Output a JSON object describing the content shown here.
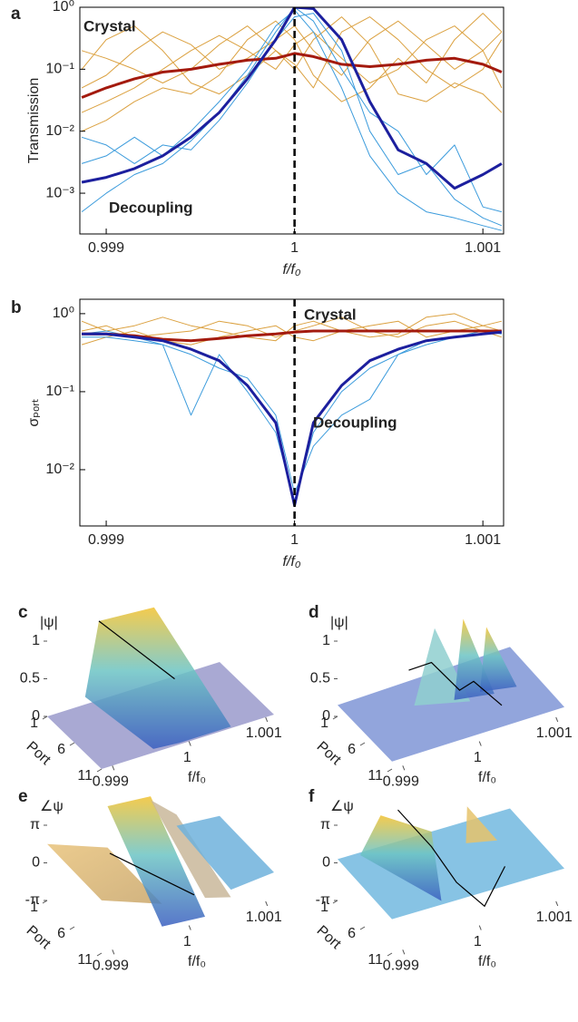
{
  "chart_data": [
    {
      "type": "line",
      "panel": "a",
      "ylabel": "Transmission",
      "xlabel": "f/f₀",
      "log_y": true,
      "xlim": [
        0.99886,
        1.00111
      ],
      "ylim": [
        0.00022,
        1
      ],
      "xticks": [
        0.999,
        1,
        1.001
      ],
      "yticks": [
        {
          "value": 1,
          "label": "10⁰"
        },
        {
          "value": 0.1,
          "label": "10⁻¹"
        },
        {
          "value": 0.01,
          "label": "10⁻²"
        },
        {
          "value": 0.001,
          "label": "10⁻³"
        }
      ],
      "vline": 1,
      "annotations": [
        {
          "text": "Crystal",
          "color": "#e07b1a"
        },
        {
          "text": "Decoupling",
          "color": "#1f80cc"
        }
      ],
      "x": [
        0.99887,
        0.999,
        0.99915,
        0.9993,
        0.99945,
        0.9996,
        0.99975,
        0.9999,
        1,
        1.0001,
        1.00025,
        1.0004,
        1.00055,
        1.0007,
        1.00085,
        1.001,
        1.0011
      ],
      "series": [
        {
          "color": "#dba140",
          "width": 1,
          "values": [
            0.05,
            0.08,
            0.2,
            0.4,
            0.25,
            0.1,
            0.15,
            0.3,
            0.5,
            0.2,
            0.08,
            0.3,
            0.6,
            0.25,
            0.1,
            0.2,
            0.4
          ]
        },
        {
          "color": "#dba140",
          "width": 1,
          "values": [
            0.02,
            0.03,
            0.05,
            0.1,
            0.2,
            0.35,
            0.2,
            0.1,
            0.25,
            0.4,
            0.15,
            0.06,
            0.1,
            0.3,
            0.5,
            0.2,
            0.05
          ]
        },
        {
          "color": "#dba140",
          "width": 1,
          "values": [
            0.1,
            0.3,
            0.5,
            0.2,
            0.06,
            0.04,
            0.08,
            0.2,
            0.12,
            0.05,
            0.4,
            0.7,
            0.3,
            0.1,
            0.05,
            0.1,
            0.3
          ]
        },
        {
          "color": "#dba140",
          "width": 1,
          "values": [
            0.01,
            0.015,
            0.03,
            0.05,
            0.04,
            0.08,
            0.3,
            0.6,
            0.3,
            0.08,
            0.03,
            0.05,
            0.15,
            0.06,
            0.3,
            0.8,
            0.4
          ]
        },
        {
          "color": "#dba140",
          "width": 1,
          "values": [
            0.2,
            0.15,
            0.1,
            0.06,
            0.1,
            0.25,
            0.5,
            0.2,
            0.1,
            0.3,
            0.7,
            0.25,
            0.04,
            0.03,
            0.06,
            0.04,
            0.02
          ]
        },
        {
          "color": "#3b9bdc",
          "width": 1,
          "values": [
            0.003,
            0.004,
            0.008,
            0.004,
            0.01,
            0.03,
            0.1,
            0.5,
            0.9,
            0.4,
            0.05,
            0.004,
            0.001,
            0.0005,
            0.0004,
            0.0003,
            0.00025
          ]
        },
        {
          "color": "#3b9bdc",
          "width": 1,
          "values": [
            0.008,
            0.006,
            0.003,
            0.006,
            0.005,
            0.015,
            0.06,
            0.3,
            0.7,
            0.8,
            0.2,
            0.01,
            0.002,
            0.003,
            0.0008,
            0.0004,
            0.0003
          ]
        },
        {
          "color": "#3b9bdc",
          "width": 1,
          "values": [
            0.0005,
            0.001,
            0.002,
            0.003,
            0.007,
            0.02,
            0.08,
            0.4,
            1.0,
            0.6,
            0.1,
            0.02,
            0.01,
            0.002,
            0.006,
            0.0006,
            0.0005
          ]
        },
        {
          "color": "#a31a0e",
          "width": 3,
          "values": [
            0.035,
            0.05,
            0.07,
            0.09,
            0.1,
            0.12,
            0.14,
            0.15,
            0.18,
            0.16,
            0.12,
            0.11,
            0.12,
            0.14,
            0.15,
            0.12,
            0.09
          ]
        },
        {
          "color": "#1c1f9e",
          "width": 3,
          "values": [
            0.0015,
            0.0018,
            0.0025,
            0.004,
            0.008,
            0.02,
            0.07,
            0.3,
            1.0,
            0.95,
            0.3,
            0.03,
            0.005,
            0.003,
            0.0012,
            0.002,
            0.003
          ]
        }
      ]
    },
    {
      "type": "line",
      "panel": "b",
      "ylabel": "σₚₒᵣₜ",
      "xlabel": "f/f₀",
      "log_y": true,
      "xlim": [
        0.99886,
        1.00111
      ],
      "ylim": [
        0.0019,
        1.53
      ],
      "xticks": [
        0.999,
        1,
        1.001
      ],
      "yticks": [
        {
          "value": 1,
          "label": "10⁰"
        },
        {
          "value": 0.1,
          "label": "10⁻¹"
        },
        {
          "value": 0.01,
          "label": "10⁻²"
        }
      ],
      "vline": 1,
      "annotations": [
        {
          "text": "Crystal",
          "color": "#e07b1a"
        },
        {
          "text": "Decoupling",
          "color": "#1f80cc"
        }
      ],
      "x": [
        0.99887,
        0.999,
        0.99915,
        0.9993,
        0.99945,
        0.9996,
        0.99975,
        0.9999,
        1,
        1.0001,
        1.00025,
        1.0004,
        1.00055,
        1.0007,
        1.00085,
        1.001,
        1.0011
      ],
      "series": [
        {
          "color": "#dba140",
          "width": 1,
          "values": [
            0.6,
            0.7,
            0.5,
            0.55,
            0.6,
            0.8,
            0.7,
            0.5,
            0.6,
            0.7,
            0.9,
            0.6,
            0.5,
            0.7,
            0.8,
            0.6,
            0.5
          ]
        },
        {
          "color": "#dba140",
          "width": 1,
          "values": [
            0.4,
            0.5,
            0.6,
            0.45,
            0.4,
            0.5,
            0.6,
            0.7,
            0.5,
            0.45,
            0.6,
            0.7,
            0.8,
            0.5,
            0.6,
            0.7,
            0.6
          ]
        },
        {
          "color": "#dba140",
          "width": 1,
          "values": [
            0.8,
            0.6,
            0.7,
            0.9,
            0.7,
            0.6,
            0.5,
            0.45,
            0.7,
            0.8,
            0.6,
            0.5,
            0.55,
            0.9,
            1.0,
            0.7,
            0.8
          ]
        },
        {
          "color": "#3b9bdc",
          "width": 1,
          "values": [
            0.5,
            0.5,
            0.45,
            0.4,
            0.05,
            0.3,
            0.1,
            0.03,
            0.004,
            0.03,
            0.1,
            0.2,
            0.3,
            0.4,
            0.5,
            0.55,
            0.6
          ]
        },
        {
          "color": "#3b9bdc",
          "width": 1,
          "values": [
            0.55,
            0.6,
            0.5,
            0.4,
            0.3,
            0.2,
            0.15,
            0.05,
            0.005,
            0.02,
            0.05,
            0.08,
            0.3,
            0.45,
            0.5,
            0.6,
            0.55
          ]
        },
        {
          "color": "#a31a0e",
          "width": 3,
          "values": [
            0.55,
            0.55,
            0.52,
            0.47,
            0.45,
            0.48,
            0.52,
            0.55,
            0.58,
            0.6,
            0.6,
            0.6,
            0.6,
            0.6,
            0.6,
            0.6,
            0.6
          ]
        },
        {
          "color": "#1c1f9e",
          "width": 3,
          "values": [
            0.55,
            0.55,
            0.5,
            0.45,
            0.35,
            0.25,
            0.12,
            0.04,
            0.0035,
            0.04,
            0.12,
            0.25,
            0.35,
            0.45,
            0.5,
            0.55,
            0.58
          ]
        }
      ]
    },
    {
      "type": "surface",
      "panel": "c",
      "zlabel": "|ψ|",
      "ylabel": "Port",
      "xlabel": "f/f₀",
      "xlim": [
        0.99886,
        1.00111
      ],
      "xticks": [
        0.999,
        1,
        1.001
      ],
      "ylim": [
        1,
        11
      ],
      "yticks": [
        1,
        6,
        11
      ],
      "zlim": [
        0,
        1
      ],
      "zticks": [
        0,
        0.5,
        1
      ]
    },
    {
      "type": "surface",
      "panel": "d",
      "zlabel": "|ψ|",
      "ylabel": "Port",
      "xlabel": "f/f₀",
      "xlim": [
        0.99886,
        1.00111
      ],
      "xticks": [
        0.999,
        1,
        1.001
      ],
      "ylim": [
        1,
        11
      ],
      "yticks": [
        1,
        6,
        11
      ],
      "zlim": [
        0,
        1
      ],
      "zticks": [
        0,
        0.5,
        1
      ]
    },
    {
      "type": "surface",
      "panel": "e",
      "zlabel": "∠ψ",
      "ylabel": "Port",
      "xlabel": "f/f₀",
      "xlim": [
        0.99886,
        1.00111
      ],
      "xticks": [
        0.999,
        1,
        1.001
      ],
      "ylim": [
        1,
        11
      ],
      "yticks": [
        1,
        6,
        11
      ],
      "zlim": [
        -3.1416,
        3.1416
      ],
      "zticks": [
        {
          "value": -3.1416,
          "label": "-π"
        },
        0,
        {
          "value": 3.1416,
          "label": "π"
        }
      ]
    },
    {
      "type": "surface",
      "panel": "f",
      "zlabel": "∠ψ",
      "ylabel": "Port",
      "xlabel": "f/f₀",
      "xlim": [
        0.99886,
        1.00111
      ],
      "xticks": [
        0.999,
        1,
        1.001
      ],
      "ylim": [
        1,
        11
      ],
      "yticks": [
        1,
        6,
        11
      ],
      "zlim": [
        -3.1416,
        3.1416
      ],
      "zticks": [
        {
          "value": -3.1416,
          "label": "-π"
        },
        0,
        {
          "value": 3.1416,
          "label": "π"
        }
      ]
    }
  ]
}
